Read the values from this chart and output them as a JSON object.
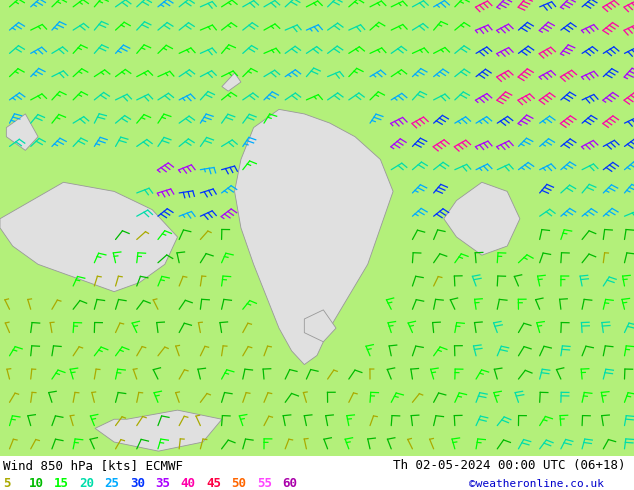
{
  "title_left": "Wind 850 hPa [kts] ECMWF",
  "title_right": "Th 02-05-2024 00:00 UTC (06+18)",
  "credit": "©weatheronline.co.uk",
  "bg_color": "#b3f07a",
  "land_color": "#e0e0e0",
  "border_color": "#999999",
  "legend_values": [
    5,
    10,
    15,
    20,
    25,
    30,
    35,
    40,
    45,
    50,
    55,
    60
  ],
  "legend_colors": [
    "#aaaa00",
    "#00bb00",
    "#00ff00",
    "#00ddaa",
    "#00aaff",
    "#0033ff",
    "#aa00ff",
    "#ff00aa",
    "#ff0044",
    "#ff6600",
    "#ff44ff",
    "#aa00aa"
  ],
  "title_color": "#000000",
  "title_fontsize": 9,
  "legend_fontsize": 9,
  "wind_colors": {
    "5": "#aaaa00",
    "10": "#00bb00",
    "15": "#00ff00",
    "20": "#00ddaa",
    "25": "#00aaff",
    "30": "#0033ff",
    "35": "#aa00ff",
    "40": "#ff00aa",
    "45": "#ff0044",
    "50": "#ff6600",
    "55": "#ff44ff",
    "60": "#aa00aa"
  },
  "figsize": [
    6.34,
    4.9
  ],
  "dpi": 100,
  "bottom_bar_height": 0.07
}
